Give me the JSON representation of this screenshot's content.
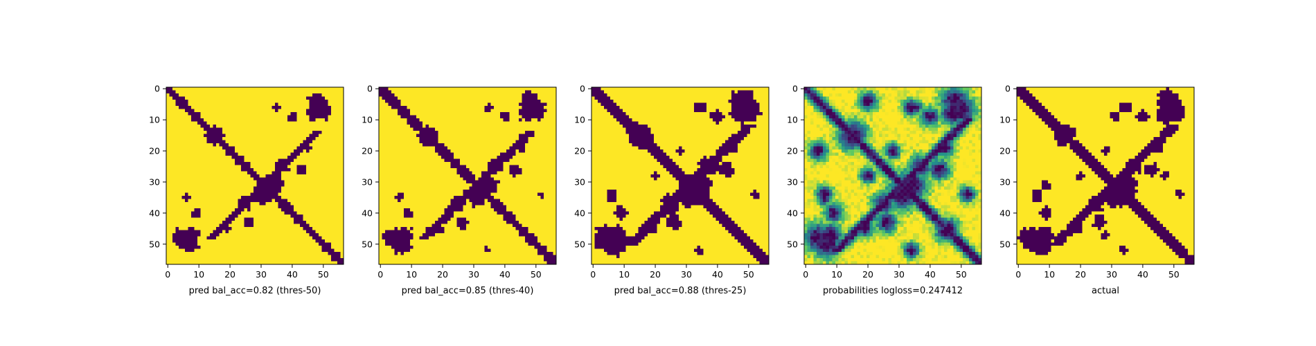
{
  "figure": {
    "background": "#ffffff",
    "colormap": [
      "#440154",
      "#3b528b",
      "#21918c",
      "#5ec962",
      "#fde725"
    ]
  },
  "chart_data": [
    {
      "type": "heatmap",
      "xlabel": "pred bal_acc=0.82 (thres-50)",
      "ylabel": "",
      "title": "",
      "xlim": [
        0,
        57
      ],
      "ylim": [
        57,
        0
      ],
      "xticks": [
        "0",
        "10",
        "20",
        "30",
        "40",
        "50"
      ],
      "yticks": [
        "0",
        "10",
        "20",
        "30",
        "40",
        "50"
      ],
      "binary": true,
      "diagonal_band_width": 1.6,
      "anti_diagonal_center": 62,
      "anti_diagonal_range": [
        14,
        48
      ],
      "anti_diagonal_width": 1.4,
      "blobs": [
        [
          15,
          15,
          2.5
        ],
        [
          34,
          31,
          3
        ],
        [
          7,
          50,
          2.5
        ],
        [
          8,
          47,
          2
        ],
        [
          48,
          4,
          2.5
        ],
        [
          40,
          9,
          1.2
        ],
        [
          26,
          43,
          1.5
        ],
        [
          37,
          25,
          1.8
        ],
        [
          6,
          35,
          1
        ],
        [
          45,
          19,
          1
        ]
      ]
    },
    {
      "type": "heatmap",
      "xlabel": "pred bal_acc=0.85 (thres-40)",
      "ylabel": "",
      "title": "",
      "xlim": [
        0,
        57
      ],
      "ylim": [
        57,
        0
      ],
      "xticks": [
        "0",
        "10",
        "20",
        "30",
        "40",
        "50"
      ],
      "yticks": [
        "0",
        "10",
        "20",
        "30",
        "40",
        "50"
      ],
      "binary": true,
      "diagonal_band_width": 1.8,
      "anti_diagonal_center": 62,
      "anti_diagonal_range": [
        14,
        48
      ],
      "anti_diagonal_width": 1.6,
      "blobs": [
        [
          15,
          15,
          2.8
        ],
        [
          34,
          31,
          3.2
        ],
        [
          7,
          50,
          2.8
        ],
        [
          8,
          47,
          2.2
        ],
        [
          48,
          4,
          2.8
        ],
        [
          40,
          9,
          1.4
        ],
        [
          26,
          43,
          1.7
        ],
        [
          37,
          25,
          2
        ],
        [
          6,
          35,
          1.1
        ],
        [
          45,
          19,
          1.2
        ],
        [
          52,
          34,
          0.8
        ]
      ]
    },
    {
      "type": "heatmap",
      "xlabel": "pred bal_acc=0.88 (thres-25)",
      "ylabel": "",
      "title": "",
      "xlim": [
        0,
        57
      ],
      "ylim": [
        57,
        0
      ],
      "xticks": [
        "0",
        "10",
        "20",
        "30",
        "40",
        "50"
      ],
      "yticks": [
        "0",
        "10",
        "20",
        "30",
        "40",
        "50"
      ],
      "binary": true,
      "diagonal_band_width": 2.1,
      "anti_diagonal_center": 62,
      "anti_diagonal_range": [
        12,
        50
      ],
      "anti_diagonal_width": 1.9,
      "blobs": [
        [
          15,
          15,
          3.2
        ],
        [
          34,
          31,
          3.6
        ],
        [
          7,
          50,
          3.2
        ],
        [
          8,
          47,
          2.6
        ],
        [
          48,
          4,
          3.2
        ],
        [
          40,
          9,
          1.8
        ],
        [
          26,
          43,
          2.1
        ],
        [
          37,
          25,
          2.4
        ],
        [
          6,
          35,
          1.4
        ],
        [
          45,
          19,
          1.6
        ],
        [
          52,
          34,
          1.2
        ],
        [
          34,
          6,
          1.4
        ],
        [
          20,
          28,
          1.2
        ]
      ]
    },
    {
      "type": "heatmap",
      "xlabel": "probabilities logloss=0.247412",
      "ylabel": "",
      "title": "",
      "xlim": [
        0,
        57
      ],
      "ylim": [
        57,
        0
      ],
      "xticks": [
        "0",
        "10",
        "20",
        "30",
        "40",
        "50"
      ],
      "yticks": [
        "0",
        "10",
        "20",
        "30",
        "40",
        "50"
      ],
      "binary": false,
      "diagonal_band_width": 1.9,
      "anti_diagonal_center": 62,
      "anti_diagonal_range": [
        10,
        52
      ],
      "anti_diagonal_width": 1.7,
      "blobs": [
        [
          15,
          15,
          3.5
        ],
        [
          34,
          31,
          3.8
        ],
        [
          7,
          50,
          3.4
        ],
        [
          8,
          47,
          2.8
        ],
        [
          48,
          4,
          3.4
        ],
        [
          40,
          9,
          2.2
        ],
        [
          26,
          43,
          2.4
        ],
        [
          37,
          25,
          2.6
        ],
        [
          6,
          35,
          1.8
        ],
        [
          45,
          19,
          2
        ],
        [
          52,
          34,
          1.8
        ],
        [
          34,
          6,
          2
        ],
        [
          20,
          28,
          1.8
        ],
        [
          20,
          4,
          2.2
        ],
        [
          45,
          46,
          2.4
        ]
      ]
    },
    {
      "type": "heatmap",
      "xlabel": "actual",
      "ylabel": "",
      "title": "",
      "xlim": [
        0,
        57
      ],
      "ylim": [
        57,
        0
      ],
      "xticks": [
        "0",
        "10",
        "20",
        "30",
        "40",
        "50"
      ],
      "yticks": [
        "0",
        "10",
        "20",
        "30",
        "40",
        "50"
      ],
      "binary": true,
      "diagonal_band_width": 2.0,
      "anti_diagonal_center": 62,
      "anti_diagonal_range": [
        12,
        50
      ],
      "anti_diagonal_width": 1.8,
      "blobs": [
        [
          15,
          15,
          3
        ],
        [
          34,
          31,
          3.4
        ],
        [
          7,
          50,
          3
        ],
        [
          8,
          47,
          2.4
        ],
        [
          48,
          4,
          3
        ],
        [
          40,
          9,
          1.6
        ],
        [
          26,
          43,
          1.9
        ],
        [
          37,
          25,
          2.2
        ],
        [
          6,
          35,
          1.3
        ],
        [
          45,
          19,
          1.5
        ],
        [
          52,
          34,
          1.1
        ],
        [
          34,
          6,
          1.3
        ],
        [
          20,
          28,
          1.1
        ],
        [
          19,
          45,
          1.4
        ],
        [
          9,
          31,
          1.2
        ],
        [
          47,
          28,
          1.2
        ]
      ]
    }
  ]
}
